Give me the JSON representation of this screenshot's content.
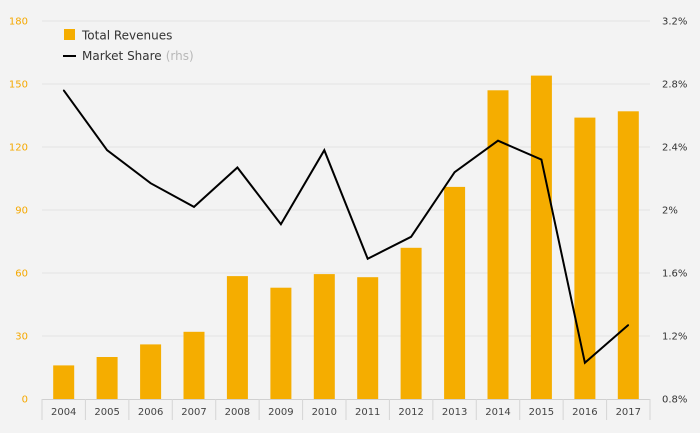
{
  "chart_data": {
    "type": "bar",
    "categories": [
      "2004",
      "2005",
      "2006",
      "2007",
      "2008",
      "2009",
      "2010",
      "2011",
      "2012",
      "2013",
      "2014",
      "2015",
      "2016",
      "2017"
    ],
    "series": [
      {
        "name": "Total Revenues",
        "type": "bar",
        "axis": "left",
        "color": "#f5ad00",
        "values": [
          16,
          20,
          26,
          32,
          58.5,
          53,
          59.5,
          58,
          72,
          101,
          147,
          154,
          134,
          137
        ]
      },
      {
        "name": "Market Share",
        "name_suffix": "(rhs)",
        "type": "line",
        "axis": "right",
        "color": "#000000",
        "values": [
          2.76,
          2.38,
          2.17,
          2.02,
          2.27,
          1.91,
          2.38,
          1.69,
          1.83,
          2.24,
          2.44,
          2.32,
          1.03,
          1.27
        ]
      }
    ],
    "y_left": {
      "ylim": [
        0,
        180
      ],
      "ticks": [
        "0",
        "30",
        "60",
        "90",
        "120",
        "150",
        "180"
      ]
    },
    "y_right": {
      "ylim": [
        0.8,
        3.2
      ],
      "ticks": [
        "0.8%",
        "1.2%",
        "1.6%",
        "2%",
        "2.4%",
        "2.8%",
        "3.2%"
      ]
    },
    "grid": true,
    "legend_position": "top-left"
  }
}
